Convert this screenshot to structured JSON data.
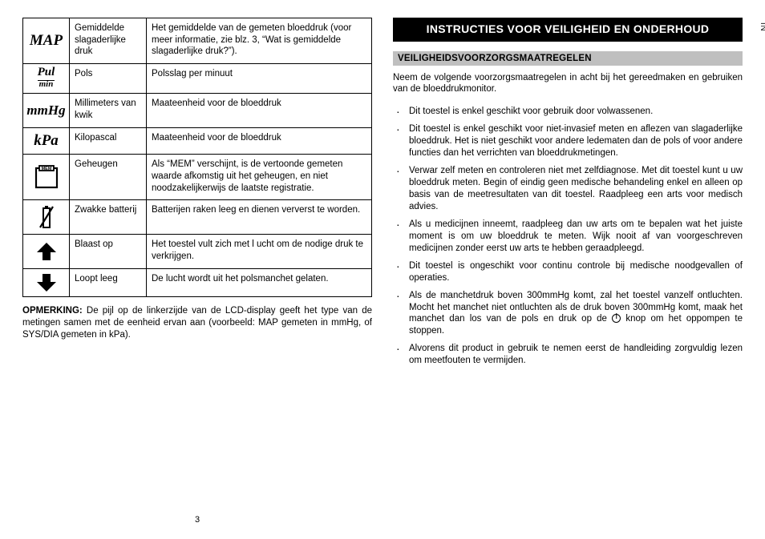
{
  "side_label": "NL",
  "page_number": "3",
  "table": {
    "rows": [
      {
        "icon": "map",
        "label": "Gemiddelde slagaderlijke druk",
        "desc": "Het gemiddelde van de gemeten bloeddruk (voor meer informatie, zie blz. 3, “Wat is gemiddelde slagaderlijke druk?”)."
      },
      {
        "icon": "pul",
        "label": "Pols",
        "desc": "Polsslag per minuut"
      },
      {
        "icon": "mmhg",
        "label": "Millimeters van kwik",
        "desc": "Maateenheid voor de bloeddruk"
      },
      {
        "icon": "kpa",
        "label": "Kilopascal",
        "desc": "Maateenheid voor de bloeddruk"
      },
      {
        "icon": "mem",
        "label": "Geheugen",
        "desc": "Als “MEM” verschijnt, is de vertoonde gemeten waarde afkomstig uit het geheugen, en niet noodzakelijkerwijs de laatste registratie."
      },
      {
        "icon": "batt",
        "label": "Zwakke batterij",
        "desc": "Batterijen raken leeg en dienen ververst te worden."
      },
      {
        "icon": "up",
        "label": "Blaast op",
        "desc": "Het toestel vult zich met l ucht om de nodige druk te verkrijgen."
      },
      {
        "icon": "down",
        "label": "Loopt leeg",
        "desc": "De lucht wordt uit het polsmanchet gelaten."
      }
    ]
  },
  "note_label": "OPMERKING:",
  "note_text": " De pijl op de linkerzijde van de LCD-display geeft het type van de metingen samen met de eenheid ervan aan (voorbeeld: MAP gemeten in mmHg, of SYS/DIA gemeten in kPa).",
  "heading": "INSTRUCTIES VOOR VEILIGHEID EN ONDERHOUD",
  "subheading": "VEILIGHEIDSVOORZORGSMAATREGELEN",
  "intro": "Neem de volgende voorzorgsmaatregelen in acht bij het gereedmaken en gebruiken van de bloeddrukmonitor.",
  "bullets": [
    "Dit toestel is enkel geschikt voor gebruik door volwassenen.",
    "Dit toestel is enkel geschikt voor niet-invasief meten en aflezen van slagaderlijke bloeddruk. Het is niet geschikt voor andere ledematen dan de pols of voor andere functies dan het verrichten van bloeddrukmetingen.",
    "Verwar zelf meten en controleren niet met zelfdiagnose. Met dit toestel kunt u uw bloeddruk meten. Begin of eindig geen medische behandeling enkel en alleen op basis van de meetresultaten van dit toestel. Raadpleeg een arts voor medisch advies.",
    "Als u medicijnen inneemt, raadpleeg dan uw arts om te bepalen wat het juiste moment is om uw bloeddruk te meten. Wijk nooit af van voorgeschreven medicijnen zonder eerst uw arts te hebben geraadpleegd.",
    "Dit toestel is ongeschikt voor continu controle bij medische noodgevallen of operaties.",
    "Als de manchetdruk boven 300mmHg komt, zal het toestel vanzelf ontluchten. Mocht het manchet niet ontluchten als de druk boven 300mmHg komt, maak het manchet dan los van de pols en druk op de {POWER} knop om het oppompen te stoppen.",
    "Alvorens dit product in gebruik te nemen eerst de handleiding zorgvuldig lezen om meetfouten te vermijden."
  ]
}
